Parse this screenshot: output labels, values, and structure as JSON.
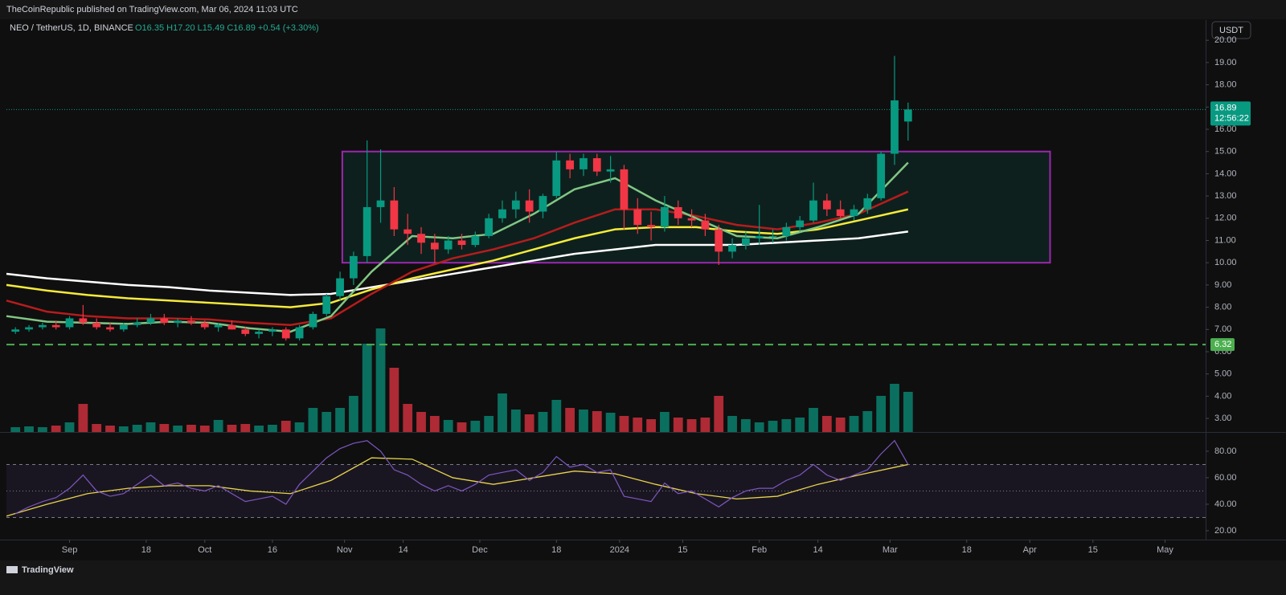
{
  "chart_data": {
    "type": "candlestick",
    "publisher": "TheCoinRepublic published on TradingView.com, Mar 06, 2024 11:03 UTC",
    "symbol": "NEO / TetherUS, 1D, BINANCE",
    "ohlc_text": "O16.35 H17.20 L15.49 C16.89 +0.54 (+3.30%)",
    "currency": "USDT",
    "footer": "TradingView",
    "up_color": "#089981",
    "down_color": "#f23645",
    "xlim": [
      -14,
      252
    ],
    "xticks": [
      {
        "value": 0,
        "label": "Sep"
      },
      {
        "value": 17,
        "label": "18"
      },
      {
        "value": 30,
        "label": "Oct"
      },
      {
        "value": 45,
        "label": "16"
      },
      {
        "value": 61,
        "label": "Nov"
      },
      {
        "value": 74,
        "label": "14"
      },
      {
        "value": 91,
        "label": "Dec"
      },
      {
        "value": 108,
        "label": "18"
      },
      {
        "value": 122,
        "label": "2024"
      },
      {
        "value": 136,
        "label": "15"
      },
      {
        "value": 153,
        "label": "Feb"
      },
      {
        "value": 166,
        "label": "14"
      },
      {
        "value": 182,
        "label": "Mar"
      },
      {
        "value": 199,
        "label": "18"
      },
      {
        "value": 213,
        "label": "Apr"
      },
      {
        "value": 227,
        "label": "15"
      },
      {
        "value": 243,
        "label": "May"
      }
    ],
    "ylim": [
      2.39,
      20.91
    ],
    "yticks": [
      {
        "value": 3,
        "label": "3.00"
      },
      {
        "value": 4,
        "label": "4.00"
      },
      {
        "value": 5,
        "label": "5.00"
      },
      {
        "value": 6,
        "label": "6.00"
      },
      {
        "value": 7,
        "label": "7.00"
      },
      {
        "value": 8,
        "label": "8.00"
      },
      {
        "value": 9,
        "label": "9.00"
      },
      {
        "value": 10,
        "label": "10.00"
      },
      {
        "value": 11,
        "label": "11.00"
      },
      {
        "value": 12,
        "label": "12.00"
      },
      {
        "value": 13,
        "label": "13.00"
      },
      {
        "value": 14,
        "label": "14.00"
      },
      {
        "value": 15,
        "label": "15.00"
      },
      {
        "value": 16,
        "label": "16.00"
      },
      {
        "value": 17,
        "label": "17.00"
      },
      {
        "value": 18,
        "label": "18.00"
      },
      {
        "value": 19,
        "label": "19.00"
      },
      {
        "value": 20,
        "label": "20.00"
      }
    ],
    "x": [
      -12,
      -9,
      -6,
      -3,
      0,
      3,
      6,
      9,
      12,
      15,
      18,
      21,
      24,
      27,
      30,
      33,
      36,
      39,
      42,
      45,
      48,
      51,
      54,
      57,
      60,
      63,
      66,
      69,
      72,
      75,
      78,
      81,
      84,
      87,
      90,
      93,
      96,
      99,
      102,
      105,
      108,
      111,
      114,
      117,
      120,
      123,
      126,
      129,
      132,
      135,
      138,
      141,
      144,
      147,
      150,
      153,
      156,
      159,
      162,
      165,
      168,
      171,
      174,
      177,
      180,
      183,
      186
    ],
    "open": [
      6.9,
      7.0,
      7.1,
      7.2,
      7.1,
      7.5,
      7.3,
      7.1,
      7.0,
      7.2,
      7.3,
      7.5,
      7.3,
      7.4,
      7.3,
      7.1,
      7.2,
      7.0,
      6.8,
      6.9,
      7.0,
      6.6,
      7.1,
      7.7,
      8.5,
      9.3,
      10.3,
      12.5,
      12.8,
      11.5,
      11.3,
      10.9,
      10.6,
      11.0,
      10.8,
      11.2,
      12.0,
      12.4,
      12.8,
      12.3,
      13.0,
      14.6,
      14.2,
      14.7,
      14.1,
      14.2,
      12.4,
      11.7,
      11.6,
      12.5,
      12.0,
      11.9,
      11.5,
      10.5,
      10.8,
      11.1,
      11.2,
      11.2,
      11.6,
      11.9,
      12.8,
      12.4,
      12.1,
      12.4,
      12.9,
      14.9,
      16.35
    ],
    "high": [
      7.1,
      7.2,
      7.3,
      7.4,
      7.6,
      8.1,
      7.5,
      7.3,
      7.3,
      7.5,
      7.7,
      7.7,
      7.5,
      7.6,
      7.4,
      7.3,
      7.4,
      7.1,
      7.0,
      7.1,
      7.1,
      7.2,
      7.8,
      8.6,
      9.6,
      10.5,
      15.5,
      15.1,
      13.4,
      12.2,
      11.6,
      11.3,
      11.2,
      11.3,
      11.4,
      12.2,
      12.8,
      13.2,
      13.3,
      13.1,
      15.0,
      14.9,
      14.9,
      14.9,
      14.8,
      14.4,
      12.9,
      12.3,
      13.0,
      12.8,
      12.4,
      12.2,
      11.7,
      11.1,
      11.4,
      12.6,
      11.5,
      11.8,
      12.1,
      13.6,
      13.1,
      12.8,
      12.6,
      13.1,
      15.0,
      19.3,
      17.2
    ],
    "low": [
      6.8,
      6.9,
      7.0,
      7.0,
      7.0,
      7.2,
      7.0,
      6.9,
      6.9,
      7.1,
      7.2,
      7.2,
      7.1,
      7.2,
      7.0,
      6.9,
      7.0,
      6.7,
      6.6,
      6.7,
      6.5,
      6.5,
      7.0,
      7.6,
      8.3,
      9.0,
      10.0,
      11.8,
      11.2,
      10.8,
      10.4,
      10.0,
      10.4,
      10.6,
      10.7,
      11.1,
      11.8,
      12.0,
      11.8,
      12.0,
      12.9,
      13.8,
      13.9,
      13.9,
      13.6,
      11.5,
      11.3,
      11.0,
      11.4,
      11.7,
      11.6,
      11.2,
      9.9,
      10.2,
      10.6,
      10.8,
      10.9,
      11.0,
      11.4,
      11.8,
      12.1,
      12.0,
      11.9,
      12.2,
      12.8,
      14.4,
      15.49
    ],
    "close": [
      7.0,
      7.1,
      7.2,
      7.1,
      7.5,
      7.3,
      7.1,
      7.0,
      7.2,
      7.3,
      7.5,
      7.3,
      7.4,
      7.3,
      7.1,
      7.2,
      7.0,
      6.8,
      6.9,
      7.0,
      6.6,
      7.1,
      7.7,
      8.5,
      9.3,
      10.3,
      12.5,
      12.8,
      11.5,
      11.3,
      10.9,
      10.6,
      11.0,
      10.8,
      11.2,
      12.0,
      12.4,
      12.8,
      12.3,
      13.0,
      14.6,
      14.2,
      14.7,
      14.1,
      14.2,
      12.4,
      11.7,
      11.6,
      12.5,
      12.0,
      11.9,
      11.5,
      10.5,
      10.8,
      11.1,
      11.2,
      11.2,
      11.6,
      11.9,
      12.8,
      12.4,
      12.1,
      12.4,
      12.9,
      14.9,
      17.3,
      16.89
    ],
    "volume": [
      6,
      7,
      6,
      8,
      12,
      35,
      10,
      8,
      7,
      9,
      12,
      10,
      8,
      9,
      8,
      15,
      9,
      10,
      8,
      9,
      14,
      12,
      30,
      25,
      30,
      45,
      110,
      129,
      80,
      35,
      25,
      20,
      15,
      12,
      14,
      20,
      48,
      28,
      22,
      25,
      40,
      30,
      28,
      26,
      24,
      20,
      18,
      16,
      25,
      18,
      16,
      18,
      45,
      20,
      16,
      12,
      14,
      16,
      18,
      30,
      20,
      18,
      20,
      26,
      45,
      60,
      50
    ],
    "ma_x": [
      -14,
      -5,
      4,
      13,
      22,
      31,
      40,
      49,
      58,
      67,
      76,
      85,
      94,
      103,
      112,
      121,
      130,
      139,
      148,
      157,
      166,
      175,
      186
    ],
    "ma_lines": [
      {
        "color": "#ffffff",
        "values": [
          9.5,
          9.3,
          9.15,
          9.0,
          8.9,
          8.75,
          8.65,
          8.55,
          8.6,
          8.9,
          9.2,
          9.5,
          9.8,
          10.1,
          10.4,
          10.6,
          10.8,
          10.8,
          10.8,
          10.9,
          11.0,
          11.1,
          11.4
        ]
      },
      {
        "color": "#f5eb3b",
        "values": [
          9.0,
          8.75,
          8.55,
          8.4,
          8.3,
          8.2,
          8.1,
          8.0,
          8.2,
          8.8,
          9.3,
          9.7,
          10.1,
          10.6,
          11.1,
          11.5,
          11.6,
          11.6,
          11.4,
          11.3,
          11.5,
          11.9,
          12.4
        ]
      },
      {
        "color": "#b71c1c",
        "values": [
          8.3,
          7.8,
          7.6,
          7.5,
          7.5,
          7.45,
          7.3,
          7.2,
          7.5,
          8.6,
          9.6,
          10.2,
          10.6,
          11.1,
          11.8,
          12.4,
          12.4,
          12.1,
          11.7,
          11.5,
          11.8,
          12.2,
          13.2
        ]
      },
      {
        "color": "#81c784",
        "values": [
          7.6,
          7.35,
          7.3,
          7.25,
          7.35,
          7.3,
          7.05,
          6.9,
          7.6,
          9.6,
          11.2,
          11.1,
          11.3,
          12.2,
          13.3,
          13.8,
          12.8,
          12.0,
          11.2,
          11.1,
          11.6,
          12.2,
          14.5
        ]
      }
    ],
    "box": {
      "x": [
        60.5,
        217.5
      ],
      "y": [
        10,
        15
      ],
      "color": "#9c27b0"
    },
    "support": {
      "value": 6.32,
      "color": "#4caf50"
    },
    "last_price": {
      "value": 16.89,
      "countdown": "12:56:22"
    },
    "rsi": {
      "color": "#7e57c2",
      "ma_color": "#e8d44d",
      "ylim": [
        13.3,
        93.3
      ],
      "yticks": [
        {
          "value": 20,
          "label": "20.00"
        },
        {
          "value": 40,
          "label": "40.00"
        },
        {
          "value": 60,
          "label": "60.00"
        },
        {
          "value": 80,
          "label": "80.00"
        }
      ],
      "levels": [
        30,
        50,
        70
      ],
      "values": [
        33,
        38,
        42,
        45,
        52,
        62,
        50,
        46,
        48,
        55,
        62,
        54,
        56,
        52,
        50,
        54,
        48,
        42,
        44,
        46,
        40,
        55,
        65,
        75,
        82,
        86,
        88,
        80,
        66,
        62,
        55,
        50,
        54,
        50,
        55,
        62,
        64,
        66,
        58,
        64,
        76,
        68,
        70,
        64,
        66,
        46,
        44,
        42,
        56,
        48,
        50,
        44,
        38,
        45,
        50,
        52,
        52,
        58,
        62,
        70,
        62,
        58,
        62,
        66,
        78,
        88,
        70
      ],
      "ma_values": [
        31,
        40,
        48,
        52,
        54,
        54,
        50,
        48,
        58,
        75,
        74,
        60,
        55,
        60,
        65,
        63,
        55,
        48,
        44,
        46,
        55,
        62,
        70
      ]
    }
  }
}
